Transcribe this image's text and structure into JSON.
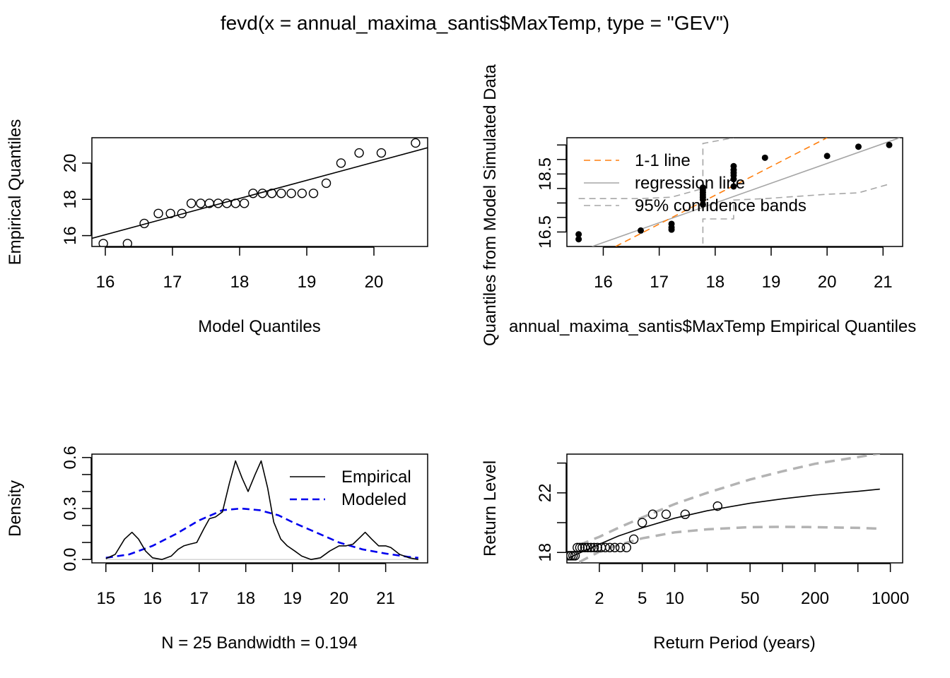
{
  "title": "fevd(x = annual_maxima_santis$MaxTemp, type = \"GEV\")",
  "colors": {
    "axis": "#000000",
    "one_to_one": "#ff7f0e",
    "regression": "#a6a6a6",
    "confidence": "#a6a6a6",
    "modeled": "#0000ee",
    "ci_return": "#b3b3b3"
  },
  "chart_data": [
    {
      "id": "qq1",
      "type": "scatter",
      "xlabel": "Model Quantiles",
      "ylabel": "Empirical Quantiles",
      "xlim": [
        15.8,
        20.8
      ],
      "ylim": [
        15.4,
        21.4
      ],
      "xticks": [
        16,
        17,
        18,
        19,
        20
      ],
      "yticks": [
        16,
        18,
        20
      ],
      "points": [
        [
          15.97,
          15.56
        ],
        [
          16.33,
          15.56
        ],
        [
          16.58,
          16.67
        ],
        [
          16.79,
          17.22
        ],
        [
          16.97,
          17.22
        ],
        [
          17.14,
          17.22
        ],
        [
          17.28,
          17.78
        ],
        [
          17.42,
          17.78
        ],
        [
          17.55,
          17.78
        ],
        [
          17.68,
          17.78
        ],
        [
          17.81,
          17.78
        ],
        [
          17.94,
          17.78
        ],
        [
          18.07,
          17.78
        ],
        [
          18.2,
          18.33
        ],
        [
          18.34,
          18.33
        ],
        [
          18.48,
          18.33
        ],
        [
          18.62,
          18.33
        ],
        [
          18.77,
          18.33
        ],
        [
          18.93,
          18.33
        ],
        [
          19.1,
          18.33
        ],
        [
          19.29,
          18.89
        ],
        [
          19.51,
          20.0
        ],
        [
          19.78,
          20.56
        ],
        [
          20.11,
          20.56
        ],
        [
          20.62,
          21.11
        ]
      ],
      "line": [
        [
          15.8,
          15.85
        ],
        [
          20.8,
          20.85
        ]
      ]
    },
    {
      "id": "qq2",
      "type": "scatter",
      "xlabel": "annual_maxima_santis$MaxTemp Empirical Quantiles",
      "ylabel": "Quantiles from Model Simulated Data",
      "xlim": [
        15.35,
        21.35
      ],
      "ylim": [
        16.0,
        19.75
      ],
      "xticks": [
        16,
        17,
        18,
        19,
        20,
        21
      ],
      "yticks": [
        16.5,
        18.5
      ],
      "minor_yticks": [
        17.0,
        17.5,
        18.0,
        19.0,
        19.5
      ],
      "points": [
        [
          15.56,
          16.42
        ],
        [
          15.56,
          16.25
        ],
        [
          16.67,
          16.55
        ],
        [
          17.22,
          16.78
        ],
        [
          17.22,
          16.66
        ],
        [
          17.22,
          16.58
        ],
        [
          17.78,
          17.45
        ],
        [
          17.78,
          17.62
        ],
        [
          17.78,
          17.7
        ],
        [
          17.78,
          17.78
        ],
        [
          17.78,
          17.86
        ],
        [
          17.78,
          17.95
        ],
        [
          17.78,
          18.03
        ],
        [
          18.33,
          18.07
        ],
        [
          18.33,
          18.32
        ],
        [
          18.33,
          18.45
        ],
        [
          18.33,
          18.54
        ],
        [
          18.33,
          18.64
        ],
        [
          18.33,
          18.77
        ],
        [
          18.89,
          19.06
        ],
        [
          20.0,
          19.12
        ],
        [
          20.56,
          19.44
        ],
        [
          21.11,
          19.5
        ]
      ],
      "one_to_one": [
        [
          16.22,
          16.0
        ],
        [
          20.0,
          19.75
        ]
      ],
      "regression": [
        [
          15.8,
          16.0
        ],
        [
          21.3,
          19.75
        ]
      ],
      "band_upper": [
        [
          15.56,
          17.65
        ],
        [
          16.67,
          17.65
        ],
        [
          17.22,
          17.7
        ],
        [
          17.78,
          18.0
        ],
        [
          17.78,
          19.55
        ],
        [
          18.33,
          19.75
        ]
      ],
      "band_lower": [
        [
          17.78,
          16.1
        ],
        [
          17.78,
          16.95
        ],
        [
          18.33,
          16.95
        ],
        [
          18.33,
          17.6
        ],
        [
          18.89,
          17.65
        ],
        [
          20.0,
          17.8
        ],
        [
          20.56,
          17.85
        ],
        [
          21.11,
          18.15
        ]
      ],
      "legend": [
        "1-1 line",
        "regression line",
        "95% confidence bands"
      ],
      "legend_position": "top-left"
    },
    {
      "id": "density",
      "type": "line",
      "xlabel": "N = 25   Bandwidth = 0.194",
      "ylabel": "Density",
      "xlim": [
        14.7,
        21.9
      ],
      "ylim": [
        -0.02,
        0.62
      ],
      "xticks": [
        15,
        16,
        17,
        18,
        19,
        20,
        21
      ],
      "yticks": [
        0.0,
        0.3,
        0.6
      ],
      "minor_yticks": [
        0.1,
        0.2,
        0.4,
        0.5
      ],
      "series": [
        {
          "name": "Empirical",
          "x": [
            15.0,
            15.2,
            15.4,
            15.56,
            15.7,
            15.85,
            16.0,
            16.2,
            16.4,
            16.55,
            16.67,
            16.8,
            16.95,
            17.1,
            17.22,
            17.35,
            17.5,
            17.65,
            17.78,
            17.92,
            18.05,
            18.2,
            18.33,
            18.47,
            18.6,
            18.75,
            18.89,
            19.05,
            19.2,
            19.4,
            19.6,
            19.8,
            20.0,
            20.15,
            20.3,
            20.45,
            20.56,
            20.7,
            20.85,
            21.0,
            21.11,
            21.3,
            21.5,
            21.7
          ],
          "y": [
            0.005,
            0.03,
            0.12,
            0.16,
            0.12,
            0.05,
            0.01,
            0.0,
            0.02,
            0.06,
            0.08,
            0.09,
            0.1,
            0.18,
            0.24,
            0.25,
            0.28,
            0.45,
            0.58,
            0.48,
            0.4,
            0.5,
            0.58,
            0.42,
            0.22,
            0.12,
            0.08,
            0.05,
            0.02,
            0.0,
            0.01,
            0.05,
            0.08,
            0.08,
            0.09,
            0.13,
            0.16,
            0.12,
            0.08,
            0.08,
            0.07,
            0.03,
            0.01,
            0.0
          ]
        },
        {
          "name": "Modeled",
          "x": [
            15.0,
            15.5,
            16.0,
            16.5,
            17.0,
            17.5,
            17.9,
            18.3,
            18.7,
            19.0,
            19.5,
            20.0,
            20.5,
            21.0,
            21.5,
            21.7
          ],
          "y": [
            0.01,
            0.03,
            0.08,
            0.15,
            0.23,
            0.29,
            0.3,
            0.29,
            0.26,
            0.22,
            0.16,
            0.1,
            0.06,
            0.035,
            0.015,
            0.01
          ]
        }
      ],
      "legend": [
        "Empirical",
        "Modeled"
      ],
      "legend_position": "top-right"
    },
    {
      "id": "return",
      "type": "line",
      "xlabel": "Return Period (years)",
      "ylabel": "Return Level",
      "xscale": "log",
      "xlim": [
        1.0,
        1300
      ],
      "ylim": [
        17.3,
        24.6
      ],
      "xticks": [
        2,
        5,
        10,
        50,
        200,
        1000
      ],
      "minor_xticks": [
        20,
        100,
        500
      ],
      "yticks": [
        18,
        22
      ],
      "minor_yticks": [
        20,
        24
      ],
      "series": [
        {
          "name": "",
          "x": [
            1.05,
            1.3,
            2,
            3,
            5,
            10,
            20,
            50,
            100,
            200,
            500,
            800
          ],
          "y": [
            17.65,
            17.95,
            18.55,
            19.1,
            19.65,
            20.3,
            20.8,
            21.3,
            21.6,
            21.85,
            22.1,
            22.25
          ]
        },
        {
          "name": "",
          "x": [
            1.3,
            2,
            3,
            5,
            10,
            20,
            50,
            100,
            200,
            500,
            800
          ],
          "y": [
            18.5,
            19.05,
            19.65,
            20.35,
            21.25,
            22.0,
            22.9,
            23.45,
            23.95,
            24.4,
            24.65
          ]
        },
        {
          "name": "",
          "x": [
            1.3,
            2,
            3,
            5,
            10,
            20,
            50,
            100,
            200,
            500,
            800
          ],
          "y": [
            17.35,
            18.05,
            18.5,
            18.95,
            19.35,
            19.55,
            19.7,
            19.72,
            19.7,
            19.65,
            19.6
          ]
        }
      ],
      "points": [
        [
          1.04,
          17.78
        ],
        [
          1.09,
          17.78
        ],
        [
          1.14,
          17.78
        ],
        [
          1.19,
          17.78
        ],
        [
          1.25,
          18.33
        ],
        [
          1.32,
          18.33
        ],
        [
          1.39,
          18.33
        ],
        [
          1.47,
          18.33
        ],
        [
          1.56,
          18.33
        ],
        [
          1.67,
          18.33
        ],
        [
          1.79,
          18.33
        ],
        [
          1.92,
          18.33
        ],
        [
          2.08,
          18.33
        ],
        [
          2.27,
          18.33
        ],
        [
          2.5,
          18.33
        ],
        [
          2.78,
          18.33
        ],
        [
          3.13,
          18.33
        ],
        [
          3.57,
          18.33
        ],
        [
          4.17,
          18.89
        ],
        [
          5.0,
          20.0
        ],
        [
          6.25,
          20.56
        ],
        [
          8.33,
          20.56
        ],
        [
          12.5,
          20.56
        ],
        [
          25.0,
          21.11
        ]
      ]
    }
  ]
}
